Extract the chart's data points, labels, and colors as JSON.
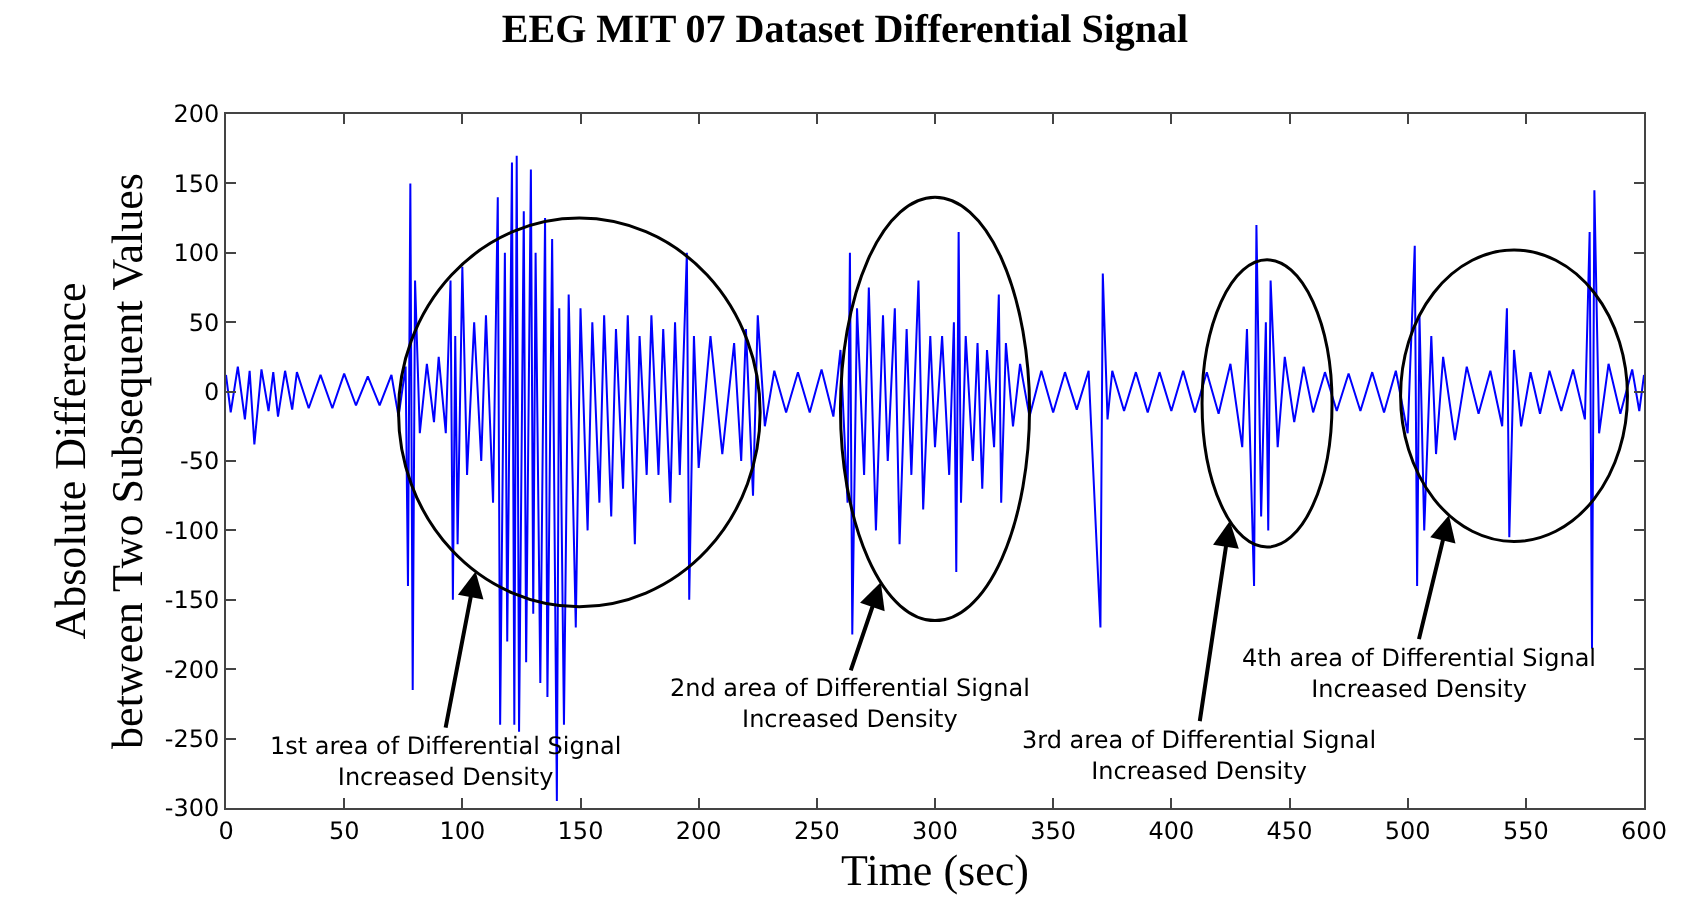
{
  "chart_data": {
    "type": "line",
    "title": "EEG MIT 07 Dataset Differential Signal",
    "xlabel": "Time (sec)",
    "ylabel": "Absolute Difference\nbetween Two Subsequent Values",
    "xlim": [
      0,
      600
    ],
    "xticks": [
      0,
      50,
      100,
      150,
      200,
      250,
      300,
      350,
      400,
      450,
      500,
      550,
      600
    ],
    "ylim": [
      -300,
      200
    ],
    "yticks": [
      -300,
      -250,
      -200,
      -150,
      -100,
      -50,
      0,
      50,
      100,
      150,
      200
    ],
    "marker": "none",
    "line_style": "solid",
    "series": [
      {
        "color": "#0000ff",
        "x": [
          0,
          2,
          5,
          8,
          10,
          12,
          15,
          18,
          20,
          22,
          25,
          28,
          30,
          35,
          40,
          45,
          50,
          55,
          60,
          65,
          70,
          73,
          76,
          77,
          78,
          79,
          80,
          82,
          85,
          88,
          90,
          93,
          95,
          96,
          97,
          98,
          100,
          102,
          105,
          108,
          110,
          113,
          115,
          116,
          118,
          119,
          121,
          122,
          123,
          124,
          126,
          127,
          129,
          130,
          131,
          133,
          135,
          136,
          138,
          140,
          141,
          143,
          145,
          148,
          150,
          153,
          155,
          158,
          160,
          163,
          165,
          168,
          170,
          173,
          175,
          178,
          180,
          183,
          185,
          188,
          190,
          192,
          195,
          196,
          198,
          200,
          205,
          210,
          215,
          218,
          220,
          223,
          225,
          228,
          232,
          237,
          242,
          247,
          252,
          257,
          260,
          263,
          264,
          265,
          267,
          270,
          272,
          275,
          278,
          280,
          283,
          285,
          288,
          290,
          293,
          295,
          298,
          300,
          303,
          306,
          308,
          309,
          310,
          311,
          313,
          316,
          318,
          320,
          322,
          325,
          327,
          328,
          330,
          333,
          336,
          340,
          345,
          350,
          355,
          360,
          365,
          370,
          371,
          373,
          375,
          380,
          385,
          390,
          395,
          400,
          405,
          410,
          415,
          420,
          425,
          430,
          432,
          435,
          436,
          438,
          440,
          441,
          442,
          445,
          448,
          452,
          456,
          460,
          465,
          470,
          475,
          480,
          485,
          490,
          495,
          500,
          503,
          504,
          505,
          507,
          510,
          512,
          515,
          520,
          525,
          530,
          535,
          540,
          542,
          543,
          545,
          548,
          552,
          556,
          560,
          565,
          570,
          575,
          577,
          578,
          579,
          581,
          585,
          590,
          595,
          598,
          600
        ],
        "values": [
          12,
          -15,
          18,
          -20,
          15,
          -38,
          16,
          -14,
          14,
          -18,
          15,
          -13,
          14,
          -12,
          12,
          -12,
          13,
          -10,
          11,
          -10,
          12,
          -18,
          18,
          -140,
          150,
          -215,
          80,
          -30,
          20,
          -22,
          25,
          -30,
          80,
          -150,
          40,
          -110,
          90,
          -60,
          50,
          -50,
          55,
          -80,
          140,
          -240,
          100,
          -180,
          165,
          -240,
          170,
          -245,
          130,
          -195,
          160,
          -160,
          100,
          -210,
          125,
          -220,
          110,
          -295,
          60,
          -240,
          70,
          -170,
          60,
          -100,
          50,
          -80,
          55,
          -90,
          45,
          -70,
          55,
          -110,
          40,
          -60,
          55,
          -60,
          45,
          -80,
          50,
          -60,
          100,
          -150,
          40,
          -55,
          40,
          -45,
          35,
          -50,
          45,
          -75,
          55,
          -25,
          15,
          -15,
          14,
          -15,
          16,
          -18,
          30,
          -80,
          100,
          -175,
          60,
          -60,
          75,
          -100,
          55,
          -50,
          60,
          -110,
          45,
          -60,
          80,
          -85,
          40,
          -40,
          40,
          -60,
          50,
          -130,
          115,
          -80,
          40,
          -50,
          35,
          -70,
          30,
          -40,
          70,
          -80,
          35,
          -25,
          20,
          -18,
          15,
          -15,
          14,
          -13,
          15,
          -170,
          85,
          -20,
          15,
          -14,
          14,
          -15,
          14,
          -14,
          15,
          -15,
          14,
          -16,
          20,
          -40,
          45,
          -140,
          120,
          -90,
          50,
          -100,
          80,
          -40,
          25,
          -22,
          18,
          -15,
          14,
          -14,
          13,
          -14,
          14,
          -15,
          15,
          -30,
          105,
          -140,
          55,
          -100,
          40,
          -45,
          25,
          -35,
          18,
          -16,
          15,
          -25,
          60,
          -105,
          30,
          -25,
          14,
          -16,
          15,
          -14,
          16,
          -20,
          115,
          -185,
          145,
          -30,
          20,
          -16,
          16,
          -14,
          12
        ]
      }
    ],
    "annotations": [
      "1st area of Differential Signal\nIncreased Density",
      "2nd area of Differential Signal\nIncreased Density",
      "3rd area of Differential Signal\nIncreased Density",
      "4th area of Differential Signal\nIncreased Density"
    ]
  }
}
